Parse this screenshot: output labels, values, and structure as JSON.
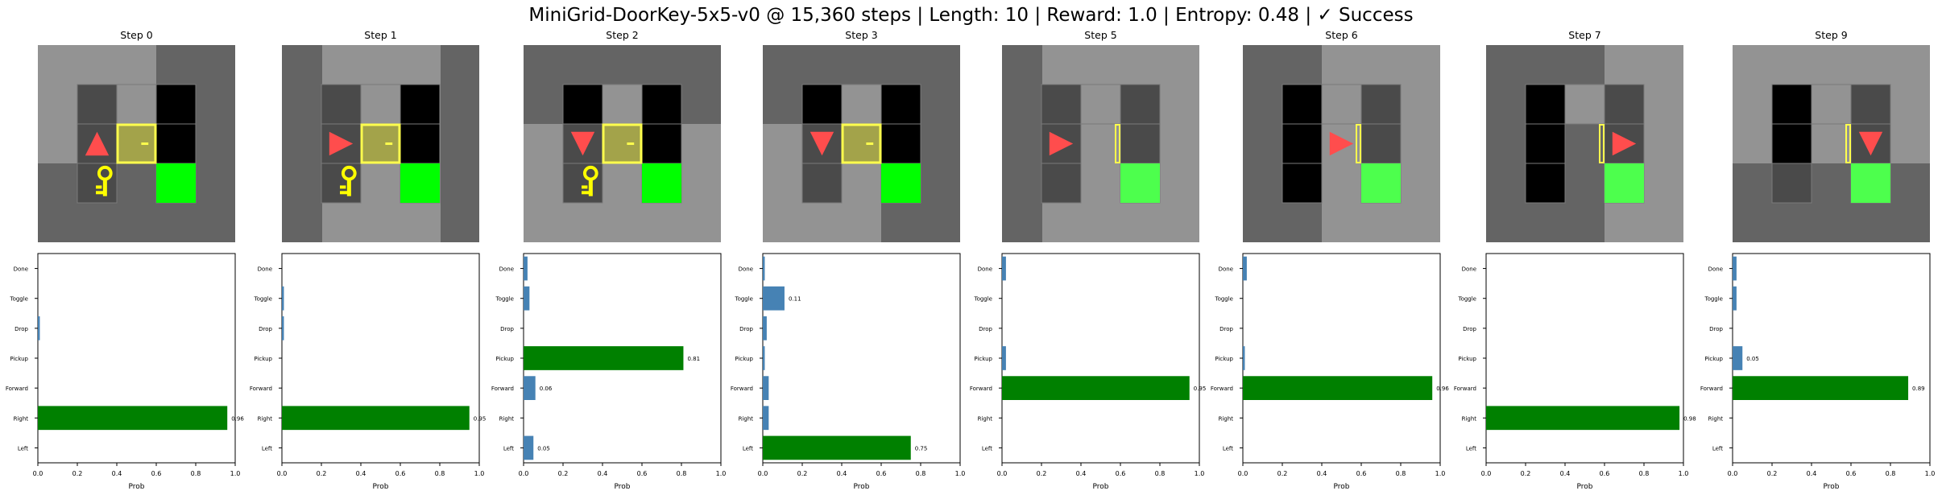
{
  "title": "MiniGrid-DoorKey-5x5-v0 @ 15,360 steps | Length: 10 | Reward: 1.0 | Entropy: 0.48 | ✓ Success",
  "colors": {
    "wall": "#646464",
    "floor_seen": "#939393",
    "floor_dark": "#000000",
    "floor_seen_cell": "#4a4a4a",
    "agent": "#ff4d4d",
    "door": "#ffff4d",
    "door_fill": "#a3a34a",
    "key": "#ffff00",
    "goal": "#00ff00",
    "goal_dim": "#4dff4d",
    "bar_selected": "#008000",
    "bar_other": "#4682b4"
  },
  "actions": [
    "Left",
    "Right",
    "Forward",
    "Pickup",
    "Drop",
    "Toggle",
    "Done"
  ],
  "xlabel": "Prob",
  "xticks": [
    "0.0",
    "0.2",
    "0.4",
    "0.6",
    "0.8",
    "1.0"
  ],
  "steps": [
    {
      "label": "Step 0",
      "agent_dir": "up",
      "door": "closed",
      "key_visible": true,
      "goal_bright": true,
      "view": "full",
      "probs": [
        0.0,
        0.96,
        0.0,
        0.0,
        0.01,
        0.0,
        0.0
      ],
      "selected": 1,
      "labels": [
        "",
        "0.96",
        "",
        "",
        "",
        "",
        ""
      ]
    },
    {
      "label": "Step 1",
      "agent_dir": "right",
      "door": "closed",
      "key_visible": true,
      "goal_bright": true,
      "view": "full",
      "probs": [
        0.0,
        0.95,
        0.0,
        0.0,
        0.01,
        0.01,
        0.0
      ],
      "selected": 1,
      "labels": [
        "",
        "0.95",
        "",
        "",
        "",
        "",
        ""
      ]
    },
    {
      "label": "Step 2",
      "agent_dir": "down",
      "door": "closed",
      "key_visible": true,
      "goal_bright": true,
      "view": "full",
      "probs": [
        0.05,
        0.0,
        0.06,
        0.81,
        0.0,
        0.03,
        0.02
      ],
      "selected": 3,
      "labels": [
        "0.05",
        "",
        "0.06",
        "0.81",
        "",
        "",
        ""
      ]
    },
    {
      "label": "Step 3",
      "agent_dir": "down",
      "door": "closed",
      "key_visible": false,
      "goal_bright": true,
      "view": "full",
      "probs": [
        0.75,
        0.03,
        0.03,
        0.01,
        0.02,
        0.11,
        0.01
      ],
      "selected": 0,
      "labels": [
        "0.75",
        "",
        "",
        "",
        "",
        "0.11",
        ""
      ]
    },
    {
      "label": "Step 5",
      "agent_dir": "right",
      "door": "open",
      "key_visible": false,
      "goal_bright": false,
      "view": "full",
      "probs": [
        0.0,
        0.0,
        0.95,
        0.02,
        0.0,
        0.0,
        0.02
      ],
      "selected": 2,
      "labels": [
        "",
        "",
        "0.95",
        "",
        "",
        "",
        ""
      ]
    },
    {
      "label": "Step 6",
      "agent_dir": "right",
      "door": "open",
      "key_visible": false,
      "goal_bright": false,
      "view": "partial",
      "probs": [
        0.0,
        0.0,
        0.96,
        0.01,
        0.0,
        0.0,
        0.02
      ],
      "selected": 2,
      "labels": [
        "",
        "",
        "0.96",
        "",
        "",
        "",
        ""
      ]
    },
    {
      "label": "Step 7",
      "agent_dir": "right",
      "door": "open",
      "key_visible": false,
      "goal_bright": false,
      "view": "partial2",
      "probs": [
        0.0,
        0.98,
        0.0,
        0.0,
        0.0,
        0.0,
        0.0
      ],
      "selected": 1,
      "labels": [
        "",
        "0.98",
        "",
        "",
        "",
        "",
        ""
      ]
    },
    {
      "label": "Step 9",
      "agent_dir": "down",
      "door": "open",
      "key_visible": false,
      "goal_bright": false,
      "view": "partial3",
      "probs": [
        0.0,
        0.0,
        0.89,
        0.05,
        0.0,
        0.02,
        0.02
      ],
      "selected": 2,
      "labels": [
        "",
        "",
        "0.89",
        "0.05",
        "",
        "",
        ""
      ]
    }
  ],
  "chart_data": {
    "type": "bar",
    "orientation": "horizontal",
    "categories": [
      "Left",
      "Right",
      "Forward",
      "Pickup",
      "Drop",
      "Toggle",
      "Done"
    ],
    "xlabel": "Prob",
    "xlim": [
      0,
      1
    ],
    "series": [
      {
        "name": "Step 0",
        "values": [
          0.0,
          0.96,
          0.0,
          0.0,
          0.01,
          0.0,
          0.0
        ]
      },
      {
        "name": "Step 1",
        "values": [
          0.0,
          0.95,
          0.0,
          0.0,
          0.01,
          0.01,
          0.0
        ]
      },
      {
        "name": "Step 2",
        "values": [
          0.05,
          0.0,
          0.06,
          0.81,
          0.0,
          0.03,
          0.02
        ]
      },
      {
        "name": "Step 3",
        "values": [
          0.75,
          0.03,
          0.03,
          0.01,
          0.02,
          0.11,
          0.01
        ]
      },
      {
        "name": "Step 5",
        "values": [
          0.0,
          0.0,
          0.95,
          0.02,
          0.0,
          0.0,
          0.02
        ]
      },
      {
        "name": "Step 6",
        "values": [
          0.0,
          0.0,
          0.96,
          0.01,
          0.0,
          0.0,
          0.02
        ]
      },
      {
        "name": "Step 7",
        "values": [
          0.0,
          0.98,
          0.0,
          0.0,
          0.0,
          0.0,
          0.0
        ]
      },
      {
        "name": "Step 9",
        "values": [
          0.0,
          0.0,
          0.89,
          0.05,
          0.0,
          0.02,
          0.02
        ]
      }
    ]
  }
}
